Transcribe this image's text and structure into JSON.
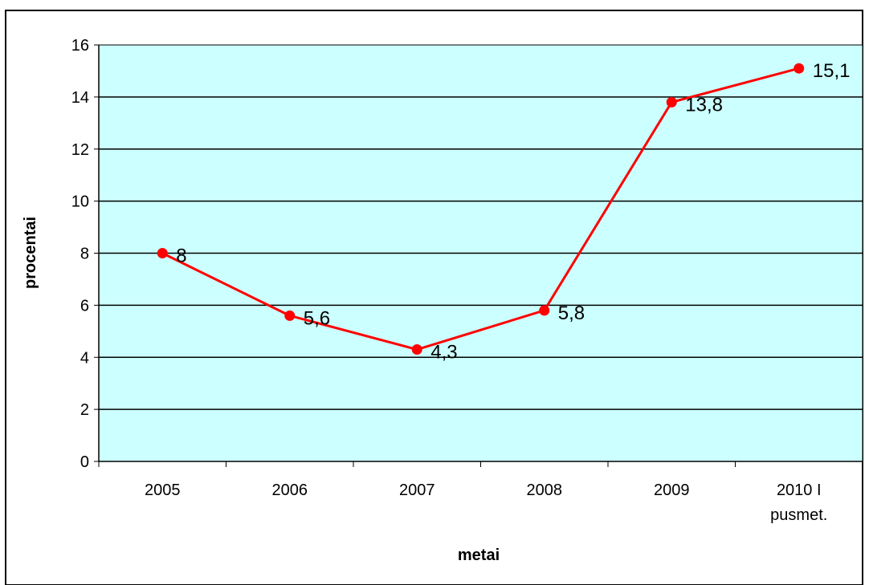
{
  "chart_data": {
    "type": "line",
    "title": "",
    "xlabel": "metai",
    "ylabel": "procentai",
    "categories": [
      [
        "2005"
      ],
      [
        "2006"
      ],
      [
        "2007"
      ],
      [
        "2008"
      ],
      [
        "2009"
      ],
      [
        "2010 I",
        "pusmet."
      ]
    ],
    "series": [
      {
        "values": [
          8,
          5.6,
          4.3,
          5.8,
          13.8,
          15.1
        ],
        "data_labels": [
          "8",
          "5,6",
          "4,3",
          "5,8",
          "13,8",
          "15,1"
        ],
        "color": "#ff0000"
      }
    ],
    "ylim": [
      0,
      16
    ],
    "yticks": [
      0,
      2,
      4,
      6,
      8,
      10,
      12,
      14,
      16
    ],
    "grid": true,
    "legend": "none",
    "colors": {
      "plot_background": "#ccffff",
      "gridline": "#000000",
      "line": "#ff0000"
    }
  }
}
